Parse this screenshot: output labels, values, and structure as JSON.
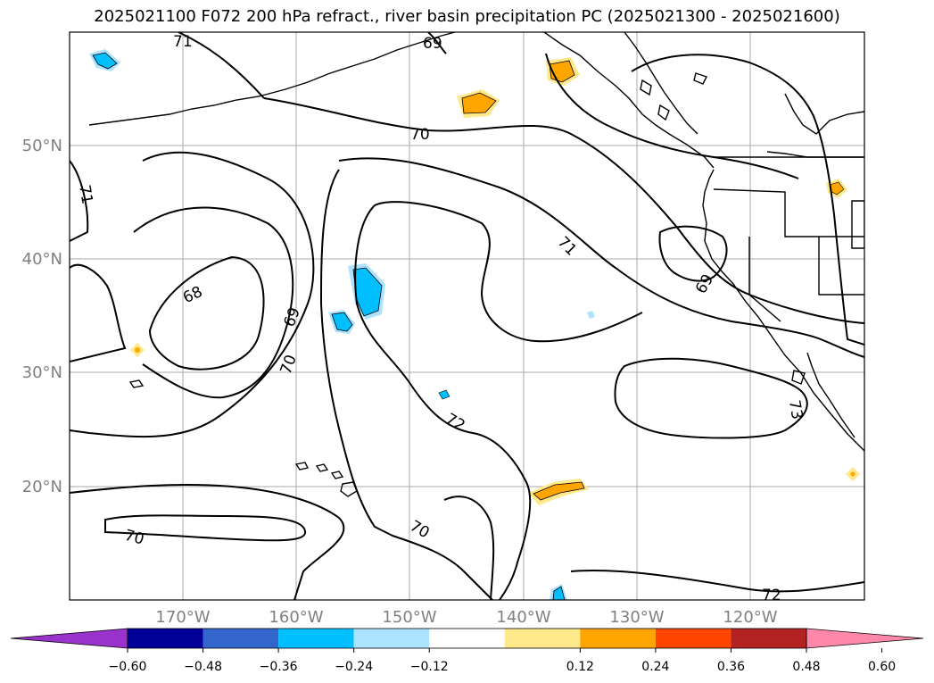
{
  "title": "2025021100 F072 200 hPa refract., river basin precipitation PC (2025021300 - 2025021600)",
  "map": {
    "lon_labels": [
      "170°W",
      "160°W",
      "150°W",
      "140°W",
      "130°W",
      "120°W"
    ],
    "lat_labels": [
      "50°N",
      "40°N",
      "30°N",
      "20°N"
    ],
    "contour_labels": [
      "71",
      "69",
      "70",
      "71",
      "68",
      "69",
      "70",
      "71",
      "69",
      "72",
      "73",
      "70",
      "70",
      "72"
    ]
  },
  "colorbar": {
    "ticks": [
      "−0.60",
      "−0.48",
      "−0.36",
      "−0.24",
      "−0.12",
      "0.12",
      "0.24",
      "0.36",
      "0.48",
      "0.60"
    ],
    "colors": [
      "#9933cc",
      "#000099",
      "#3366cc",
      "#00bfff",
      "#aee3ff",
      "#ffffff",
      "#ffe98a",
      "#ffa500",
      "#ff4500",
      "#b22222",
      "#ff88aa"
    ]
  }
}
